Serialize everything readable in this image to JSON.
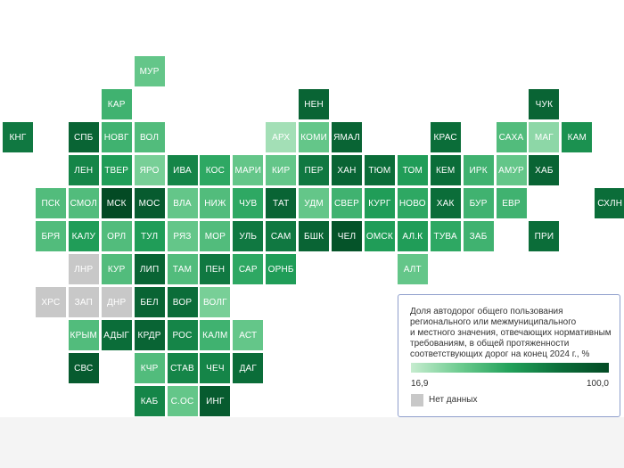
{
  "legend": {
    "title_lines": [
      "Доля автодорог общего пользования",
      "регионального или межмуниципального",
      "и местного значения, отвечающих нормативным",
      "требованиям, в общей протяженности",
      "соответствующих дорог на конец 2024 г., %"
    ],
    "min_label": "16,9",
    "max_label": "100,0",
    "nodata_label": "Нет данных",
    "gradient_colors": [
      "#c6eccf",
      "#6ccb8f",
      "#22a15a",
      "#0b6e3a",
      "#034a24"
    ],
    "nodata_color": "#c8c8c8"
  },
  "chart_data": {
    "type": "heatmap",
    "value_range": [
      16.9,
      100.0
    ],
    "tiles": [
      {
        "label": "МУР",
        "col": 4,
        "row": 0,
        "value": 40
      },
      {
        "label": "КАР",
        "col": 3,
        "row": 1,
        "value": 50
      },
      {
        "label": "НЕН",
        "col": 9,
        "row": 1,
        "value": 85
      },
      {
        "label": "ЧУК",
        "col": 16,
        "row": 1,
        "value": 85
      },
      {
        "label": "КНГ",
        "col": 0,
        "row": 2,
        "value": 75
      },
      {
        "label": "СПБ",
        "col": 2,
        "row": 2,
        "value": 85
      },
      {
        "label": "НОВГ",
        "col": 3,
        "row": 2,
        "value": 50
      },
      {
        "label": "ВОЛ",
        "col": 4,
        "row": 2,
        "value": 45
      },
      {
        "label": "АРХ",
        "col": 8,
        "row": 2,
        "value": 25
      },
      {
        "label": "КОМИ",
        "col": 9,
        "row": 2,
        "value": 40
      },
      {
        "label": "ЯМАЛ",
        "col": 10,
        "row": 2,
        "value": 85
      },
      {
        "label": "КРАС",
        "col": 13,
        "row": 2,
        "value": 80
      },
      {
        "label": "САХА",
        "col": 15,
        "row": 2,
        "value": 45
      },
      {
        "label": "МАГ",
        "col": 16,
        "row": 2,
        "value": 30
      },
      {
        "label": "КАМ",
        "col": 17,
        "row": 2,
        "value": 65
      },
      {
        "label": "ЛЕН",
        "col": 2,
        "row": 3,
        "value": 70
      },
      {
        "label": "ТВЕР",
        "col": 3,
        "row": 3,
        "value": 60
      },
      {
        "label": "ЯРО",
        "col": 4,
        "row": 3,
        "value": 35
      },
      {
        "label": "ИВА",
        "col": 5,
        "row": 3,
        "value": 70
      },
      {
        "label": "КОС",
        "col": 6,
        "row": 3,
        "value": 55
      },
      {
        "label": "МАРИ",
        "col": 7,
        "row": 3,
        "value": 40
      },
      {
        "label": "КИР",
        "col": 8,
        "row": 3,
        "value": 40
      },
      {
        "label": "ПЕР",
        "col": 9,
        "row": 3,
        "value": 75
      },
      {
        "label": "ХАН",
        "col": 10,
        "row": 3,
        "value": 85
      },
      {
        "label": "ТЮМ",
        "col": 11,
        "row": 3,
        "value": 80
      },
      {
        "label": "ТОМ",
        "col": 12,
        "row": 3,
        "value": 60
      },
      {
        "label": "КЕМ",
        "col": 13,
        "row": 3,
        "value": 80
      },
      {
        "label": "ИРК",
        "col": 14,
        "row": 3,
        "value": 50
      },
      {
        "label": "АМУР",
        "col": 15,
        "row": 3,
        "value": 40
      },
      {
        "label": "ХАБ",
        "col": 16,
        "row": 3,
        "value": 85
      },
      {
        "label": "ПСК",
        "col": 1,
        "row": 4,
        "value": 45
      },
      {
        "label": "СМОЛ",
        "col": 2,
        "row": 4,
        "value": 45
      },
      {
        "label": "МСК",
        "col": 3,
        "row": 4,
        "value": 100
      },
      {
        "label": "МОС",
        "col": 4,
        "row": 4,
        "value": 90
      },
      {
        "label": "ВЛА",
        "col": 5,
        "row": 4,
        "value": 40
      },
      {
        "label": "НИЖ",
        "col": 6,
        "row": 4,
        "value": 45
      },
      {
        "label": "ЧУВ",
        "col": 7,
        "row": 4,
        "value": 55
      },
      {
        "label": "ТАТ",
        "col": 8,
        "row": 4,
        "value": 85
      },
      {
        "label": "УДМ",
        "col": 9,
        "row": 4,
        "value": 40
      },
      {
        "label": "СВЕР",
        "col": 10,
        "row": 4,
        "value": 50
      },
      {
        "label": "КУРГ",
        "col": 11,
        "row": 4,
        "value": 60
      },
      {
        "label": "НОВО",
        "col": 12,
        "row": 4,
        "value": 55
      },
      {
        "label": "ХАК",
        "col": 13,
        "row": 4,
        "value": 80
      },
      {
        "label": "БУР",
        "col": 14,
        "row": 4,
        "value": 50
      },
      {
        "label": "ЕВР",
        "col": 15,
        "row": 4,
        "value": 50
      },
      {
        "label": "СХЛН",
        "col": 18,
        "row": 4,
        "value": 80
      },
      {
        "label": "БРЯ",
        "col": 1,
        "row": 5,
        "value": 45
      },
      {
        "label": "КАЛУ",
        "col": 2,
        "row": 5,
        "value": 60
      },
      {
        "label": "ОРЛ",
        "col": 3,
        "row": 5,
        "value": 45
      },
      {
        "label": "ТУЛ",
        "col": 4,
        "row": 5,
        "value": 60
      },
      {
        "label": "РЯЗ",
        "col": 5,
        "row": 5,
        "value": 40
      },
      {
        "label": "МОР",
        "col": 6,
        "row": 5,
        "value": 45
      },
      {
        "label": "УЛЬ",
        "col": 7,
        "row": 5,
        "value": 75
      },
      {
        "label": "САМ",
        "col": 8,
        "row": 5,
        "value": 75
      },
      {
        "label": "БШК",
        "col": 9,
        "row": 5,
        "value": 85
      },
      {
        "label": "ЧЕЛ",
        "col": 10,
        "row": 5,
        "value": 95
      },
      {
        "label": "ОМСК",
        "col": 11,
        "row": 5,
        "value": 60
      },
      {
        "label": "АЛ.К",
        "col": 12,
        "row": 5,
        "value": 60
      },
      {
        "label": "ТУВА",
        "col": 13,
        "row": 5,
        "value": 55
      },
      {
        "label": "ЗАБ",
        "col": 14,
        "row": 5,
        "value": 50
      },
      {
        "label": "ПРИ",
        "col": 16,
        "row": 5,
        "value": 80
      },
      {
        "label": "ЛНР",
        "col": 2,
        "row": 6,
        "value": null
      },
      {
        "label": "КУР",
        "col": 3,
        "row": 6,
        "value": 45
      },
      {
        "label": "ЛИП",
        "col": 4,
        "row": 6,
        "value": 85
      },
      {
        "label": "ТАМ",
        "col": 5,
        "row": 6,
        "value": 45
      },
      {
        "label": "ПЕН",
        "col": 6,
        "row": 6,
        "value": 75
      },
      {
        "label": "САР",
        "col": 7,
        "row": 6,
        "value": 55
      },
      {
        "label": "ОРНБ",
        "col": 8,
        "row": 6,
        "value": 60
      },
      {
        "label": "АЛТ",
        "col": 12,
        "row": 6,
        "value": 40
      },
      {
        "label": "ХРС",
        "col": 1,
        "row": 7,
        "value": null
      },
      {
        "label": "ЗАП",
        "col": 2,
        "row": 7,
        "value": null
      },
      {
        "label": "ДНР",
        "col": 3,
        "row": 7,
        "value": null
      },
      {
        "label": "БЕЛ",
        "col": 4,
        "row": 7,
        "value": 85
      },
      {
        "label": "ВОР",
        "col": 5,
        "row": 7,
        "value": 80
      },
      {
        "label": "ВОЛГ",
        "col": 6,
        "row": 7,
        "value": 35
      },
      {
        "label": "КРЫМ",
        "col": 2,
        "row": 8,
        "value": 45
      },
      {
        "label": "АДЫГ",
        "col": 3,
        "row": 8,
        "value": 80
      },
      {
        "label": "КРДР",
        "col": 4,
        "row": 8,
        "value": 85
      },
      {
        "label": "РОС",
        "col": 5,
        "row": 8,
        "value": 70
      },
      {
        "label": "КАЛМ",
        "col": 6,
        "row": 8,
        "value": 50
      },
      {
        "label": "АСТ",
        "col": 7,
        "row": 8,
        "value": 40
      },
      {
        "label": "СВС",
        "col": 2,
        "row": 9,
        "value": 90
      },
      {
        "label": "КЧР",
        "col": 4,
        "row": 9,
        "value": 45
      },
      {
        "label": "СТАВ",
        "col": 5,
        "row": 9,
        "value": 70
      },
      {
        "label": "ЧЕЧ",
        "col": 6,
        "row": 9,
        "value": 70
      },
      {
        "label": "ДАГ",
        "col": 7,
        "row": 9,
        "value": 80
      },
      {
        "label": "КАБ",
        "col": 4,
        "row": 10,
        "value": 70
      },
      {
        "label": "С.ОС",
        "col": 5,
        "row": 10,
        "value": 40
      },
      {
        "label": "ИНГ",
        "col": 6,
        "row": 10,
        "value": 90
      }
    ]
  }
}
